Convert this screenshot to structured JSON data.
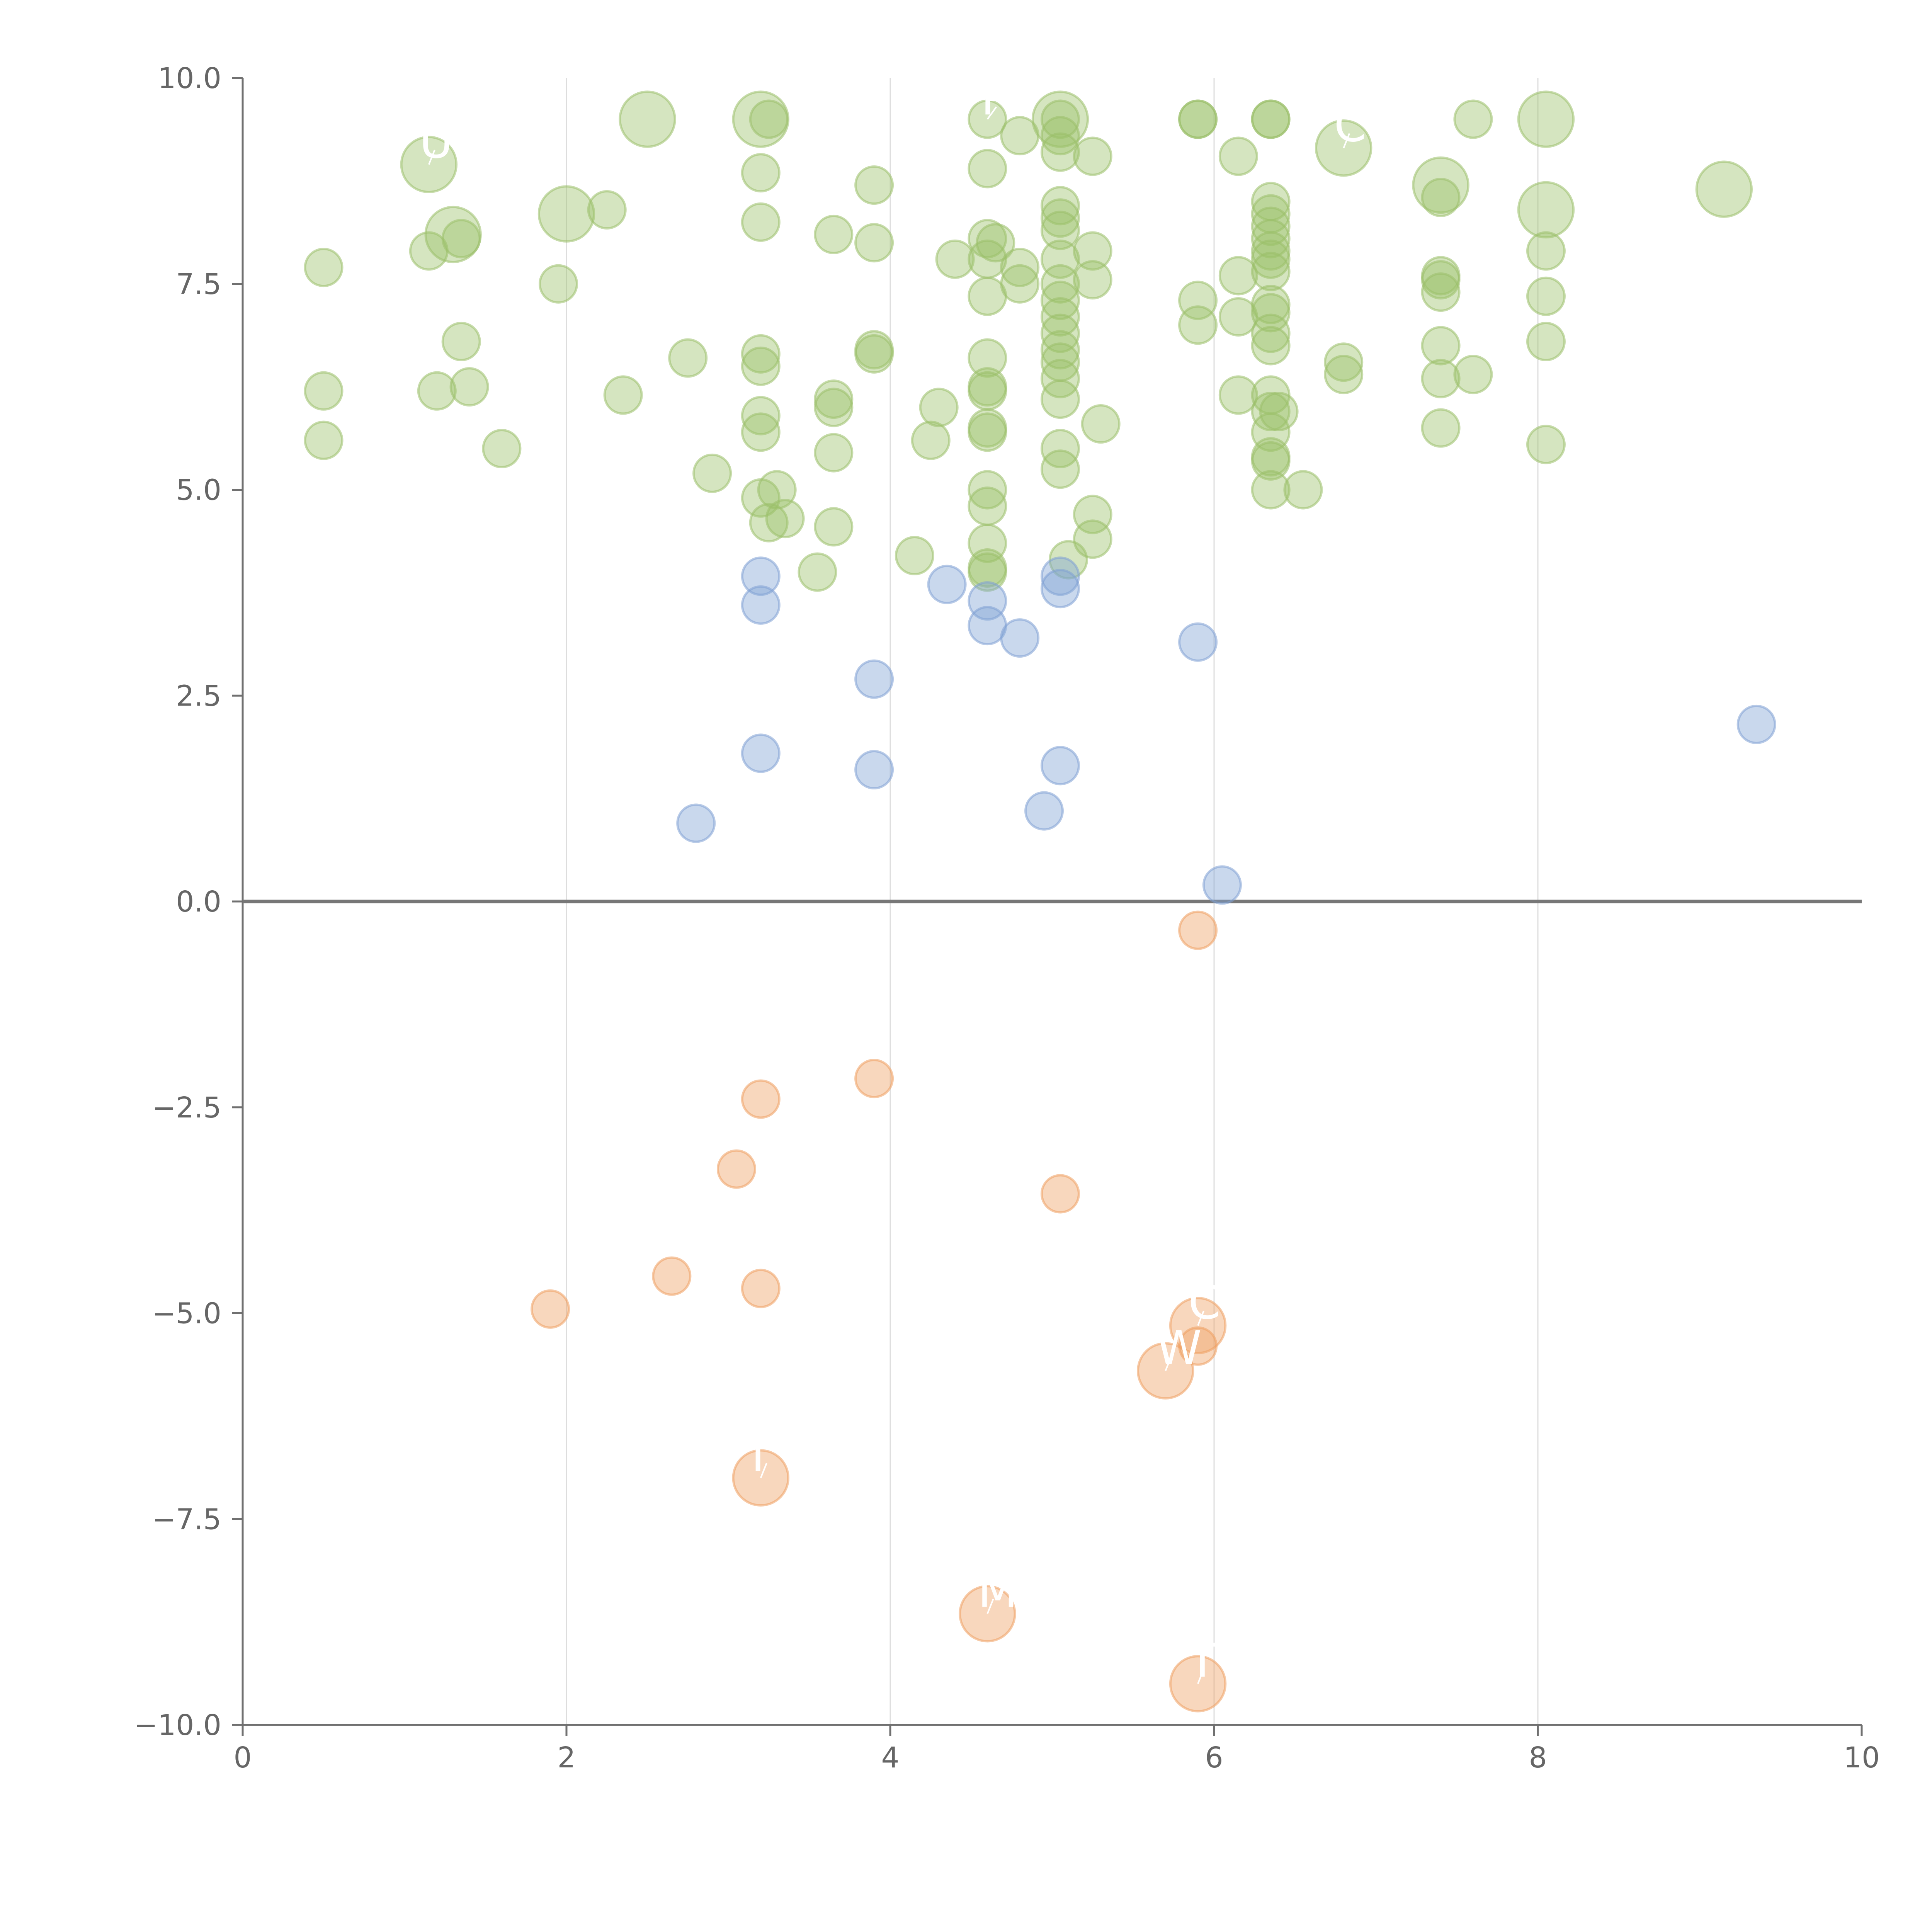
{
  "chart_data": {
    "type": "scatter",
    "subtype": "bubble",
    "title": "",
    "xlabel": "",
    "ylabel": "",
    "xlim": [
      0,
      10
    ],
    "ylim": [
      -10,
      10
    ],
    "x_ticks": [
      "0",
      "2",
      "4",
      "6",
      "8",
      "10"
    ],
    "y_ticks": [
      "10.0",
      "7.5",
      "5.0",
      "2.5",
      "0.0",
      "−2.5",
      "−5.0",
      "−7.5",
      "−10.0"
    ],
    "x_grid": [
      2,
      4,
      6,
      8
    ],
    "zero_line": 0,
    "legend": "none",
    "colors": {
      "positive_high": "#9bc06a",
      "positive_low": "#7fa1d4",
      "negative": "#ee9f61"
    },
    "series": [
      {
        "color": "#9bc06a",
        "points": [
          {
            "x": 0.5,
            "y": 7.7,
            "size": 1
          },
          {
            "x": 0.5,
            "y": 6.2,
            "size": 1
          },
          {
            "x": 0.5,
            "y": 5.6,
            "size": 1
          },
          {
            "x": 1.15,
            "y": 7.9,
            "size": 1
          },
          {
            "x": 1.2,
            "y": 6.2,
            "size": 1
          },
          {
            "x": 1.35,
            "y": 6.8,
            "size": 1
          },
          {
            "x": 1.4,
            "y": 6.25,
            "size": 1
          },
          {
            "x": 1.6,
            "y": 5.5,
            "size": 1
          },
          {
            "x": 1.35,
            "y": 8.05,
            "size": 1
          },
          {
            "x": 1.15,
            "y": 8.95,
            "size": 2.2,
            "label": "U"
          },
          {
            "x": 1.3,
            "y": 8.1,
            "size": 2.2,
            "label": ""
          },
          {
            "x": 1.95,
            "y": 7.5,
            "size": 1
          },
          {
            "x": 2.0,
            "y": 8.35,
            "size": 2.2
          },
          {
            "x": 2.25,
            "y": 8.4,
            "size": 1
          },
          {
            "x": 2.35,
            "y": 6.15,
            "size": 1
          },
          {
            "x": 2.5,
            "y": 9.5,
            "size": 2.2
          },
          {
            "x": 2.75,
            "y": 6.6,
            "size": 1
          },
          {
            "x": 2.9,
            "y": 5.2,
            "size": 1
          },
          {
            "x": 3.2,
            "y": 9.5,
            "size": 2.2
          },
          {
            "x": 3.25,
            "y": 9.5,
            "size": 1
          },
          {
            "x": 3.2,
            "y": 8.85,
            "size": 1
          },
          {
            "x": 3.2,
            "y": 8.25,
            "size": 1
          },
          {
            "x": 3.2,
            "y": 6.65,
            "size": 1
          },
          {
            "x": 3.2,
            "y": 6.5,
            "size": 1
          },
          {
            "x": 3.2,
            "y": 5.9,
            "size": 1
          },
          {
            "x": 3.2,
            "y": 5.7,
            "size": 1
          },
          {
            "x": 3.2,
            "y": 4.9,
            "size": 1
          },
          {
            "x": 3.25,
            "y": 4.6,
            "size": 1
          },
          {
            "x": 3.3,
            "y": 5.0,
            "size": 1
          },
          {
            "x": 3.35,
            "y": 4.65,
            "size": 1
          },
          {
            "x": 3.55,
            "y": 4.0,
            "size": 1
          },
          {
            "x": 3.65,
            "y": 8.1,
            "size": 1
          },
          {
            "x": 3.65,
            "y": 6.1,
            "size": 1
          },
          {
            "x": 3.65,
            "y": 6.0,
            "size": 1
          },
          {
            "x": 3.65,
            "y": 5.45,
            "size": 1
          },
          {
            "x": 3.65,
            "y": 4.55,
            "size": 1
          },
          {
            "x": 3.9,
            "y": 8.7,
            "size": 1
          },
          {
            "x": 3.9,
            "y": 8.0,
            "size": 1
          },
          {
            "x": 3.9,
            "y": 6.7,
            "size": 1
          },
          {
            "x": 3.9,
            "y": 6.65,
            "size": 1
          },
          {
            "x": 4.15,
            "y": 4.2,
            "size": 1
          },
          {
            "x": 4.25,
            "y": 5.6,
            "size": 1
          },
          {
            "x": 4.3,
            "y": 6.0,
            "size": 1
          },
          {
            "x": 4.4,
            "y": 7.8,
            "size": 1
          },
          {
            "x": 4.6,
            "y": 9.5,
            "size": 1,
            "label": "P"
          },
          {
            "x": 4.6,
            "y": 8.9,
            "size": 1
          },
          {
            "x": 4.6,
            "y": 8.05,
            "size": 1
          },
          {
            "x": 4.6,
            "y": 7.8,
            "size": 1
          },
          {
            "x": 4.6,
            "y": 7.35,
            "size": 1
          },
          {
            "x": 4.6,
            "y": 6.6,
            "size": 1
          },
          {
            "x": 4.6,
            "y": 6.25,
            "size": 1
          },
          {
            "x": 4.6,
            "y": 6.2,
            "size": 1
          },
          {
            "x": 4.6,
            "y": 5.75,
            "size": 1
          },
          {
            "x": 4.6,
            "y": 5.7,
            "size": 1
          },
          {
            "x": 4.6,
            "y": 5.0,
            "size": 1
          },
          {
            "x": 4.6,
            "y": 4.8,
            "size": 1
          },
          {
            "x": 4.6,
            "y": 4.35,
            "size": 1
          },
          {
            "x": 4.6,
            "y": 4.05,
            "size": 1
          },
          {
            "x": 4.6,
            "y": 4.0,
            "size": 1
          },
          {
            "x": 4.65,
            "y": 8.0,
            "size": 1
          },
          {
            "x": 4.8,
            "y": 9.3,
            "size": 1
          },
          {
            "x": 4.8,
            "y": 7.7,
            "size": 1
          },
          {
            "x": 4.8,
            "y": 7.5,
            "size": 1
          },
          {
            "x": 5.05,
            "y": 9.5,
            "size": 2.2
          },
          {
            "x": 5.05,
            "y": 9.5,
            "size": 1
          },
          {
            "x": 5.05,
            "y": 9.3,
            "size": 1
          },
          {
            "x": 5.05,
            "y": 9.1,
            "size": 1
          },
          {
            "x": 5.05,
            "y": 8.45,
            "size": 1
          },
          {
            "x": 5.05,
            "y": 8.3,
            "size": 1
          },
          {
            "x": 5.05,
            "y": 8.15,
            "size": 1
          },
          {
            "x": 5.05,
            "y": 7.8,
            "size": 1
          },
          {
            "x": 5.05,
            "y": 7.5,
            "size": 1
          },
          {
            "x": 5.05,
            "y": 7.3,
            "size": 1
          },
          {
            "x": 5.05,
            "y": 7.1,
            "size": 1
          },
          {
            "x": 5.05,
            "y": 6.9,
            "size": 1
          },
          {
            "x": 5.05,
            "y": 6.7,
            "size": 1
          },
          {
            "x": 5.05,
            "y": 6.55,
            "size": 1
          },
          {
            "x": 5.05,
            "y": 6.35,
            "size": 1
          },
          {
            "x": 5.05,
            "y": 6.1,
            "size": 1
          },
          {
            "x": 5.05,
            "y": 5.5,
            "size": 1
          },
          {
            "x": 5.05,
            "y": 5.25,
            "size": 1
          },
          {
            "x": 5.1,
            "y": 4.15,
            "size": 1
          },
          {
            "x": 5.25,
            "y": 9.05,
            "size": 1
          },
          {
            "x": 5.25,
            "y": 7.9,
            "size": 1
          },
          {
            "x": 5.25,
            "y": 7.55,
            "size": 1
          },
          {
            "x": 5.25,
            "y": 4.7,
            "size": 1
          },
          {
            "x": 5.25,
            "y": 4.4,
            "size": 1
          },
          {
            "x": 5.3,
            "y": 5.8,
            "size": 1
          },
          {
            "x": 5.9,
            "y": 9.5,
            "size": 1
          },
          {
            "x": 5.9,
            "y": 9.5,
            "size": 1
          },
          {
            "x": 5.9,
            "y": 7.3,
            "size": 1
          },
          {
            "x": 5.9,
            "y": 7.0,
            "size": 1
          },
          {
            "x": 6.15,
            "y": 9.05,
            "size": 1
          },
          {
            "x": 6.15,
            "y": 7.6,
            "size": 1
          },
          {
            "x": 6.15,
            "y": 7.1,
            "size": 1
          },
          {
            "x": 6.15,
            "y": 6.15,
            "size": 1
          },
          {
            "x": 6.35,
            "y": 9.5,
            "size": 1
          },
          {
            "x": 6.35,
            "y": 9.5,
            "size": 1
          },
          {
            "x": 6.35,
            "y": 8.5,
            "size": 1
          },
          {
            "x": 6.35,
            "y": 8.35,
            "size": 1
          },
          {
            "x": 6.35,
            "y": 8.2,
            "size": 1
          },
          {
            "x": 6.35,
            "y": 8.05,
            "size": 1
          },
          {
            "x": 6.35,
            "y": 7.9,
            "size": 1
          },
          {
            "x": 6.35,
            "y": 7.8,
            "size": 1
          },
          {
            "x": 6.35,
            "y": 7.65,
            "size": 1
          },
          {
            "x": 6.35,
            "y": 7.25,
            "size": 1
          },
          {
            "x": 6.35,
            "y": 7.15,
            "size": 1
          },
          {
            "x": 6.35,
            "y": 6.9,
            "size": 1
          },
          {
            "x": 6.35,
            "y": 6.75,
            "size": 1
          },
          {
            "x": 6.35,
            "y": 6.15,
            "size": 1
          },
          {
            "x": 6.35,
            "y": 5.95,
            "size": 1
          },
          {
            "x": 6.35,
            "y": 5.7,
            "size": 1
          },
          {
            "x": 6.35,
            "y": 5.4,
            "size": 1
          },
          {
            "x": 6.35,
            "y": 5.35,
            "size": 1
          },
          {
            "x": 6.35,
            "y": 5.0,
            "size": 1
          },
          {
            "x": 6.4,
            "y": 5.95,
            "size": 1
          },
          {
            "x": 6.55,
            "y": 5.0,
            "size": 1
          },
          {
            "x": 6.8,
            "y": 9.15,
            "size": 2.2,
            "label": "CT"
          },
          {
            "x": 6.8,
            "y": 6.55,
            "size": 1
          },
          {
            "x": 6.8,
            "y": 6.4,
            "size": 1
          },
          {
            "x": 7.4,
            "y": 8.7,
            "size": 2.2
          },
          {
            "x": 7.4,
            "y": 8.55,
            "size": 1
          },
          {
            "x": 7.4,
            "y": 7.6,
            "size": 1
          },
          {
            "x": 7.4,
            "y": 7.55,
            "size": 1
          },
          {
            "x": 7.4,
            "y": 7.4,
            "size": 1
          },
          {
            "x": 7.4,
            "y": 6.75,
            "size": 1
          },
          {
            "x": 7.4,
            "y": 6.35,
            "size": 1
          },
          {
            "x": 7.4,
            "y": 5.75,
            "size": 1
          },
          {
            "x": 7.6,
            "y": 9.5,
            "size": 1
          },
          {
            "x": 7.6,
            "y": 6.4,
            "size": 1
          },
          {
            "x": 8.05,
            "y": 9.5,
            "size": 2.2
          },
          {
            "x": 8.05,
            "y": 8.4,
            "size": 2.2
          },
          {
            "x": 8.05,
            "y": 7.9,
            "size": 1
          },
          {
            "x": 8.05,
            "y": 7.35,
            "size": 1
          },
          {
            "x": 8.05,
            "y": 6.8,
            "size": 1
          },
          {
            "x": 8.05,
            "y": 5.55,
            "size": 1
          },
          {
            "x": 9.15,
            "y": 8.65,
            "size": 2.2
          }
        ]
      },
      {
        "color": "#7fa1d4",
        "points": [
          {
            "x": 2.8,
            "y": 0.95,
            "size": 1
          },
          {
            "x": 3.2,
            "y": 3.95,
            "size": 1
          },
          {
            "x": 3.2,
            "y": 3.6,
            "size": 1
          },
          {
            "x": 3.2,
            "y": 1.8,
            "size": 1
          },
          {
            "x": 3.9,
            "y": 2.7,
            "size": 1
          },
          {
            "x": 3.9,
            "y": 1.6,
            "size": 1
          },
          {
            "x": 4.35,
            "y": 3.85,
            "size": 1
          },
          {
            "x": 4.6,
            "y": 3.65,
            "size": 1
          },
          {
            "x": 4.6,
            "y": 3.35,
            "size": 1
          },
          {
            "x": 4.8,
            "y": 3.2,
            "size": 1
          },
          {
            "x": 4.95,
            "y": 1.1,
            "size": 1
          },
          {
            "x": 5.05,
            "y": 3.95,
            "size": 1
          },
          {
            "x": 5.05,
            "y": 3.8,
            "size": 1
          },
          {
            "x": 5.05,
            "y": 1.65,
            "size": 1
          },
          {
            "x": 5.9,
            "y": 3.15,
            "size": 1
          },
          {
            "x": 6.05,
            "y": 0.2,
            "size": 1
          },
          {
            "x": 9.35,
            "y": 2.15,
            "size": 1
          }
        ]
      },
      {
        "color": "#ee9f61",
        "points": [
          {
            "x": 1.9,
            "y": -4.95,
            "size": 1
          },
          {
            "x": 2.65,
            "y": -4.55,
            "size": 1
          },
          {
            "x": 3.05,
            "y": -3.25,
            "size": 1
          },
          {
            "x": 3.2,
            "y": -2.4,
            "size": 1
          },
          {
            "x": 3.2,
            "y": -4.7,
            "size": 1
          },
          {
            "x": 3.2,
            "y": -7.0,
            "size": 2.2,
            "label": "I"
          },
          {
            "x": 3.9,
            "y": -2.15,
            "size": 1
          },
          {
            "x": 4.6,
            "y": -8.65,
            "size": 2.2,
            "label": "M"
          },
          {
            "x": 5.05,
            "y": -3.55,
            "size": 1
          },
          {
            "x": 5.7,
            "y": -5.7,
            "size": 2.2,
            "label": "W"
          },
          {
            "x": 5.9,
            "y": -0.35,
            "size": 1
          },
          {
            "x": 5.9,
            "y": -5.15,
            "size": 2.2,
            "label": "C"
          },
          {
            "x": 5.9,
            "y": -5.4,
            "size": 1
          },
          {
            "x": 5.9,
            "y": -9.5,
            "size": 2.2,
            "label": "T"
          }
        ]
      }
    ]
  }
}
